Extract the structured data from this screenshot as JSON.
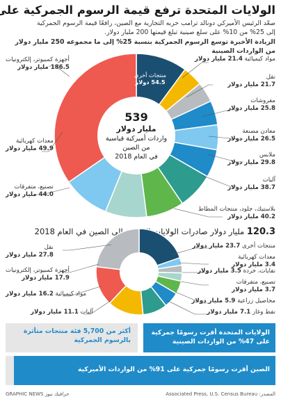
{
  "header": {
    "title": "الولايات المتحدة ترفع قيمة الرسوم الجمركية على البضائع الصينية",
    "subtitle_1": "صعّد الرئيس الأميركي دونالد ترامب حربه التجارية مع الصين، رافعًا قيمة الرسوم الجمركية",
    "subtitle_2": "إلى 25% من 10% على سلع صينية تبلغ قيمتها 200 مليار دولار.",
    "subtitle_3": "الزيادة الأخيرة توسع الرسوم الجمركية بنسبة 25% إلى ما مجموعه 250 مليار دولار من الواردات الصينية"
  },
  "center_top": {
    "number": "539",
    "line1": "مليار دولار",
    "line2": "واردات أميركية قياسية",
    "line3": "من الصين",
    "line4": "في العام 2018"
  },
  "section_bottom": {
    "number": "120.3",
    "text": "مليار دولار صادرات الولايات المتحدة إلى الصين في العام 2018"
  },
  "boxes": {
    "left_box": "أكثر من 5,700 فئة منتجات متأثرة بالرسوم الجمركية",
    "right_box": "الولايات المتحدة أقرت رسومًا جمركية على 47% من الواردات الصينية",
    "bottom_box": "الصين أقرت رسومًا جمركية على 91% من الواردات الأميركية"
  },
  "footer": {
    "source": "Associated Press, U.S. Census Bureau :المصدر",
    "credit": "GRAPHIC NEWS جرافيك نيوز"
  },
  "colors": {
    "dark_blue": "#1b4f72",
    "yellow": "#f5b800",
    "gray": "#b8bcc0",
    "blue": "#1f8bc9",
    "light_blue": "#7fc8ef",
    "teal": "#2d9c8f",
    "mint": "#a6d6cd",
    "green": "#5fb64b",
    "coral": "#ee5a4f"
  },
  "chart_data": [
    {
      "type": "pie",
      "title": "539 مليار دولار واردات أميركية قياسية من الصين في العام 2018",
      "unit": "مليار دولار",
      "slices": [
        {
          "label": "منتجات أخرى",
          "value": 54.5,
          "value_text": "54.5 دولار",
          "color": "#1b4f72"
        },
        {
          "label": "مواد كيميائية",
          "value": 21.4,
          "value_text": "21.4 مليار دولار",
          "color": "#f5b800"
        },
        {
          "label": "نقل",
          "value": 21.7,
          "value_text": "21.7 مليار دولار",
          "color": "#b8bcc0"
        },
        {
          "label": "مفروشات",
          "value": 25.8,
          "value_text": "25.8 مليار دولار",
          "color": "#1f8bc9"
        },
        {
          "label": "معادن مصنعة",
          "value": 26.5,
          "value_text": "26.5 مليار دولار",
          "color": "#7fc8ef"
        },
        {
          "label": "ملابس",
          "value": 29.8,
          "value_text": "29.8 مليار دولار",
          "color": "#1f8bc9"
        },
        {
          "label": "آليات",
          "value": 38.7,
          "value_text": "38.7 مليار دولار",
          "color": "#2d9c8f"
        },
        {
          "label": "بلاستيك، جلود، منتجات المطاط",
          "value": 40.2,
          "value_text": "40.2 مليار دولار",
          "color": "#5fb64b"
        },
        {
          "label": "تصنيع، متفرقات",
          "value": 44.0,
          "value_text": "44.0 مليار دولار",
          "color": "#a6d6cd"
        },
        {
          "label": "معدات كهربائية",
          "value": 49.9,
          "value_text": "49.9 مليار دولار",
          "color": "#7fc8ef"
        },
        {
          "label": "أجهزة كمبيوتر، إلكترونيات",
          "value": 186.5,
          "value_text": "186.5 مليار دولار",
          "color": "#ee5a4f"
        }
      ]
    },
    {
      "type": "pie",
      "title": "120.3 مليار دولار صادرات الولايات المتحدة إلى الصين في العام 2018",
      "unit": "مليار دولار",
      "slices": [
        {
          "label": "منتجات أخرى",
          "value": 23.7,
          "value_text": "23.7 مليار دولار",
          "color": "#1b4f72"
        },
        {
          "label": "معدات كهربائية",
          "value": 3.4,
          "value_text": "3.4 مليار دولار",
          "color": "#7fc8ef"
        },
        {
          "label": "نفايات، خردة",
          "value": 3.5,
          "value_text": "3.5 مليار دولار",
          "color": "#b8bcc0"
        },
        {
          "label": "تصنيع، متفرقات",
          "value": 3.7,
          "value_text": "3.7 مليار دولار",
          "color": "#a6d6cd"
        },
        {
          "label": "محاصيل زراعية",
          "value": 5.9,
          "value_text": "5.9 مليار دولار",
          "color": "#5fb64b"
        },
        {
          "label": "نفط وغاز",
          "value": 7.1,
          "value_text": "7.1 مليار دولار",
          "color": "#1f8bc9"
        },
        {
          "label": "آليات",
          "value": 11.1,
          "value_text": "11.1 مليار دولار",
          "color": "#2d9c8f"
        },
        {
          "label": "مواد كيميائية",
          "value": 16.2,
          "value_text": "16.2 مليار دولار",
          "color": "#f5b800"
        },
        {
          "label": "أجهزة كمبيوتر، إلكترونيات",
          "value": 17.9,
          "value_text": "17.9 مليار دولار",
          "color": "#ee5a4f"
        },
        {
          "label": "نقل",
          "value": 27.8,
          "value_text": "27.8 مليار دولار",
          "color": "#b8bcc0"
        }
      ]
    }
  ]
}
